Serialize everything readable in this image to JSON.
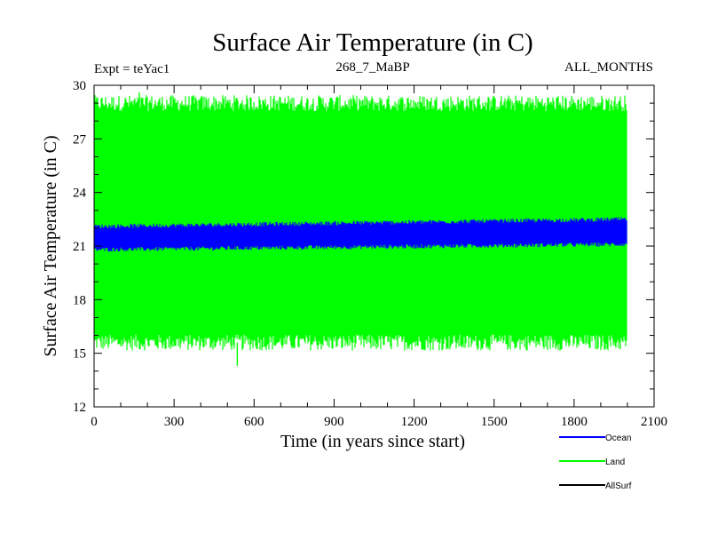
{
  "chart_data": {
    "type": "area",
    "title": "Surface Air Temperature (in C)",
    "subtitle_left": "Expt = teYac1",
    "subtitle_center": "268_7_MaBP",
    "subtitle_right": "ALL_MONTHS",
    "xlabel": "Time (in years since start)",
    "ylabel": "Surface Air Temperature (in C)",
    "xlim": [
      0,
      2100
    ],
    "ylim": [
      12,
      30
    ],
    "x_ticks": [
      0,
      300,
      600,
      900,
      1200,
      1500,
      1800,
      2100
    ],
    "y_ticks": [
      12,
      15,
      18,
      21,
      24,
      27,
      30
    ],
    "x_tick_labels": [
      "0",
      "300",
      "600",
      "900",
      "1200",
      "1500",
      "1800",
      "2100"
    ],
    "y_tick_labels": [
      "12",
      "15",
      "18",
      "21",
      "24",
      "27",
      "30"
    ],
    "x_minor_step": 100,
    "y_minor_step": 1,
    "grid": false,
    "legend_position": "bottom-right",
    "series": [
      {
        "name": "Land",
        "color": "#00ff00",
        "x_range": [
          0,
          2000
        ],
        "band_min": 15.6,
        "band_max": 29.0,
        "noise": 0.45,
        "extreme_low": {
          "x": 537,
          "y": 14.3
        },
        "extreme_high": {
          "x": 170,
          "y": 29.6
        }
      },
      {
        "name": "Ocean",
        "color": "#0000ff",
        "x_range": [
          0,
          2000
        ],
        "band_min_start": 20.8,
        "band_min_end": 21.1,
        "band_max_start": 22.1,
        "band_max_end": 22.5,
        "noise": 0.12
      },
      {
        "name": "AllSurf",
        "color": "#000000",
        "x_range": [
          0,
          2000
        ],
        "visible_in_plot": false
      }
    ],
    "legend": [
      {
        "label": "Ocean",
        "color": "#0000ff"
      },
      {
        "label": "Land",
        "color": "#00ff00"
      },
      {
        "label": "AllSurf",
        "color": "#000000"
      }
    ]
  }
}
